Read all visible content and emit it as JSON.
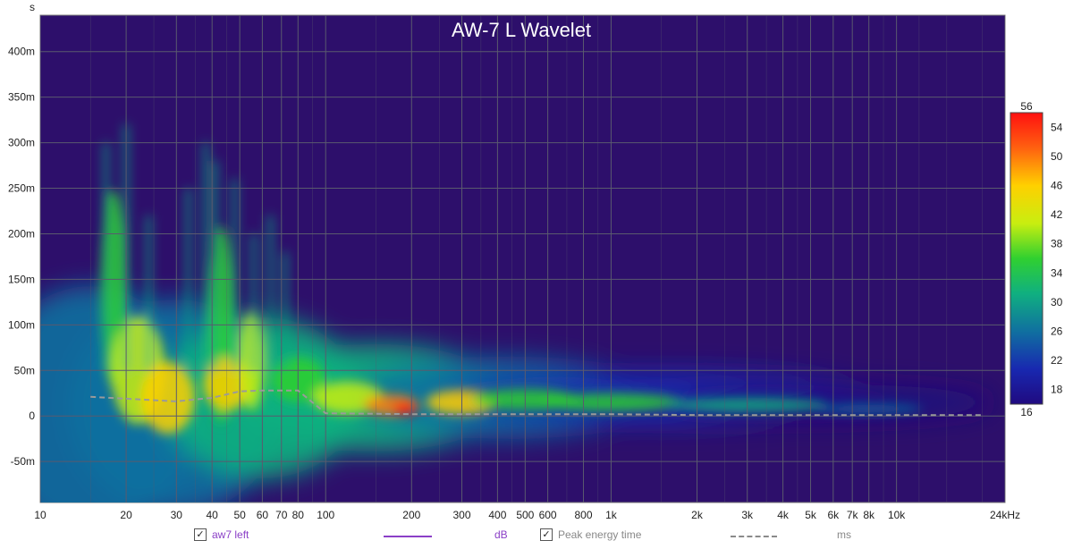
{
  "chart_data": {
    "type": "heatmap",
    "title": "AW-7 L Wavelet",
    "x_axis": {
      "scale": "log",
      "unit": "kHz",
      "range": [
        10,
        24000
      ],
      "tick_values": [
        10,
        20,
        30,
        40,
        50,
        60,
        70,
        80,
        100,
        200,
        300,
        400,
        500,
        600,
        800,
        1000,
        2000,
        3000,
        4000,
        5000,
        6000,
        7000,
        8000,
        10000,
        24000
      ],
      "tick_labels": [
        "10",
        "20",
        "30",
        "40",
        "50",
        "60",
        "70",
        "80",
        "100",
        "200",
        "300",
        "400",
        "500",
        "600",
        "800",
        "1k",
        "2k",
        "3k",
        "4k",
        "5k",
        "6k",
        "7k",
        "8k",
        "10k",
        "24kHz"
      ]
    },
    "y_axis": {
      "unit": "s",
      "range": [
        -0.095,
        0.44
      ],
      "tick_values": [
        -0.05,
        0,
        0.05,
        0.1,
        0.15,
        0.2,
        0.25,
        0.3,
        0.35,
        0.4
      ],
      "tick_labels": [
        "-50m",
        "0",
        "50m",
        "100m",
        "150m",
        "200m",
        "250m",
        "300m",
        "350m",
        "400m"
      ]
    },
    "colorbar": {
      "unit": "dB",
      "range": [
        16,
        56
      ],
      "labels": [
        "56",
        "54",
        "50",
        "46",
        "42",
        "38",
        "34",
        "30",
        "26",
        "22",
        "18",
        "16"
      ]
    },
    "grid": true,
    "series": [
      {
        "name": "aw7 left",
        "unit": "dB",
        "color": "#8b3fc7",
        "checked": true
      },
      {
        "name": "Peak energy time",
        "unit": "ms",
        "color": "#9a9a9a",
        "checked": true,
        "style": "dashed"
      }
    ],
    "peak_energy_time": {
      "freq_hz": [
        15,
        20,
        30,
        40,
        50,
        60,
        80,
        100,
        200,
        300,
        500,
        1000,
        2000,
        5000,
        10000,
        20000
      ],
      "time_s": [
        0.021,
        0.019,
        0.016,
        0.02,
        0.027,
        0.028,
        0.028,
        0.003,
        0.002,
        0.002,
        0.002,
        0.002,
        0.001,
        0.001,
        0.001,
        0.001
      ]
    },
    "energy_blobs": [
      {
        "freq_hz": 170,
        "time_s": 0.008,
        "level_db": 56
      },
      {
        "freq_hz": 43,
        "time_s": 0.035,
        "level_db": 50
      },
      {
        "freq_hz": 26,
        "time_s": 0.03,
        "level_db": 48
      },
      {
        "freq_hz": 300,
        "time_s": 0.01,
        "level_db": 50
      },
      {
        "freq_hz": 20,
        "time_s": 0.11,
        "level_db": 40
      },
      {
        "freq_hz": 45,
        "time_s": 0.15,
        "level_db": 42
      }
    ]
  },
  "colors": {
    "plot_bg": "#2d0f6b",
    "grid": "#5a5a6e",
    "peak_line": "#9a9a9a"
  },
  "axis_unit_top": "s"
}
